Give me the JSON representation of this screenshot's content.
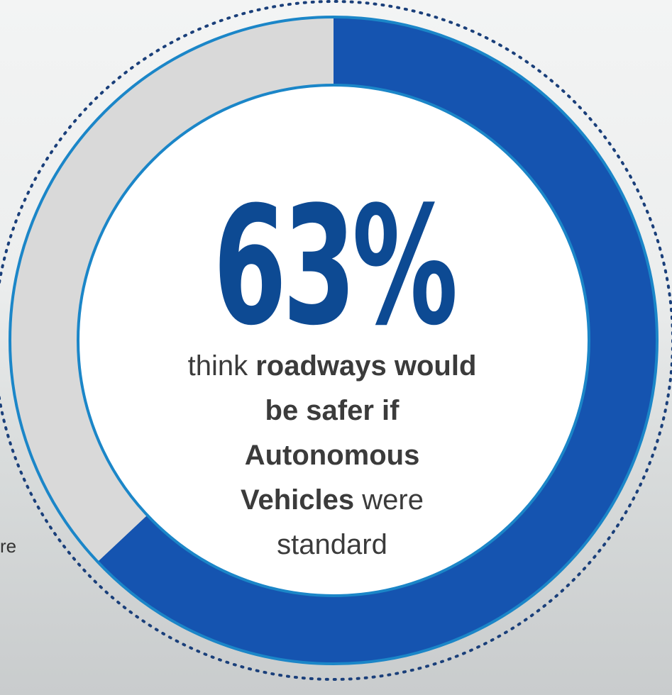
{
  "chart_data": {
    "type": "donut",
    "values": [
      63,
      37
    ],
    "value_labels": [
      "63%",
      null
    ],
    "colors": [
      "#1554b0",
      "#d9d9d9"
    ],
    "caption": [
      {
        "text": "think ",
        "bold": false
      },
      {
        "text": "roadways would be safer if Autonomous Vehicles",
        "bold": true
      },
      {
        "text": " were standard",
        "bold": false
      }
    ],
    "side_text": "re"
  }
}
